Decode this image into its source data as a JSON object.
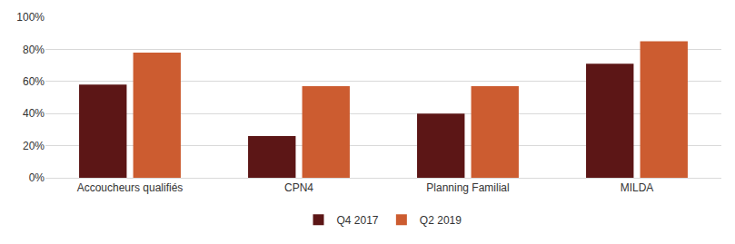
{
  "chart_data": {
    "type": "bar",
    "categories": [
      "Accoucheurs qualifiés",
      "CPN4",
      "Planning Familial",
      "MILDA"
    ],
    "series": [
      {
        "name": "Q4 2017",
        "color": "#5c1616",
        "values": [
          58,
          26,
          40,
          71
        ]
      },
      {
        "name": "Q2 2019",
        "color": "#cc5c30",
        "values": [
          78,
          57,
          57,
          85
        ]
      }
    ],
    "ylim": [
      0,
      100
    ],
    "yticks": [
      {
        "value": 0,
        "label": "0%"
      },
      {
        "value": 20,
        "label": "20%"
      },
      {
        "value": 40,
        "label": "40%"
      },
      {
        "value": 60,
        "label": "60%"
      },
      {
        "value": 80,
        "label": "80%"
      },
      {
        "value": 100,
        "label": "100%"
      }
    ],
    "grid": true,
    "legend": "bottom"
  }
}
